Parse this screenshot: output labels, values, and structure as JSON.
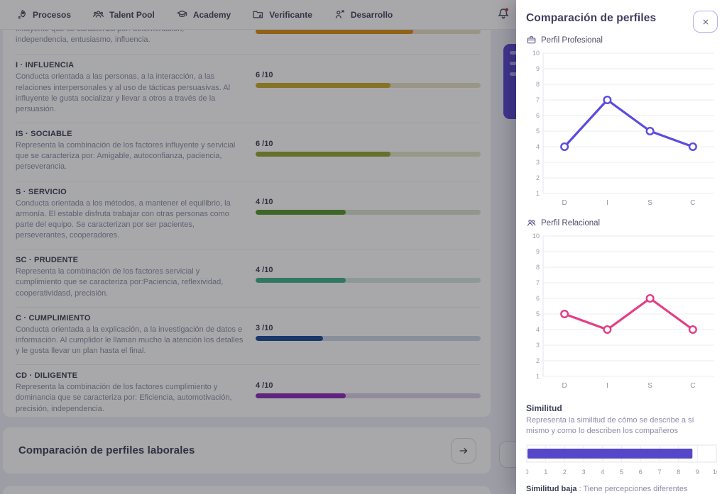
{
  "nav": {
    "items": [
      {
        "label": "Procesos",
        "icon": "rocket-icon"
      },
      {
        "label": "Talent Pool",
        "icon": "people-group-icon"
      },
      {
        "label": "Academy",
        "icon": "graduation-cap-icon"
      },
      {
        "label": "Verificante",
        "icon": "folder-user-icon"
      },
      {
        "label": "Desarrollo",
        "icon": "user-growth-icon"
      }
    ],
    "notifications": {
      "icon": "bell-icon",
      "has_unread": true
    }
  },
  "disc_report": {
    "partial_section": {
      "clipped_line": "influyente que se caracteriza por: determinación,",
      "visible_line": "independencia, entusiasmo, influencia.",
      "value": 7,
      "color": "#dd9118",
      "track": "#eadfc4"
    },
    "sections": [
      {
        "title": "I · INFLUENCIA",
        "description": "Conducta orientada a las personas, a la interacción, a las relaciones interpersonales y al uso de tácticas persuasivas. Al influyente le gusta socializar y llevar a otros a través de la persuasión.",
        "score_label": "6 /10",
        "value": 6,
        "color": "#c9ac2a",
        "track": "#e9e3c6"
      },
      {
        "title": "IS · SOCIABLE",
        "description": "Representa la combinación de los factores influyente y servicial que se caracteriza por: Amigable, autoconfianza, paciencia, perseverancia.",
        "score_label": "6 /10",
        "value": 6,
        "color": "#97a637",
        "track": "#e2e6c8"
      },
      {
        "title": "S · SERVICIO",
        "description": "Conducta orientada a los métodos, a mantener el equilibrio, la armonía. El estable disfruta trabajar con otras personas como parte del equipo. Se caracterizan por ser pacientes, perseverantes, cooperadores.",
        "score_label": "4 /10",
        "value": 4,
        "color": "#57972f",
        "track": "#d8e3cd"
      },
      {
        "title": "SC · PRUDENTE",
        "description": "Representa la combinación de los factores servicial y cumplimiento que se caracteriza por:Paciencia, reflexividad, cooperatividasd, precisión.",
        "score_label": "4 /10",
        "value": 4,
        "color": "#45b28f",
        "track": "#d3e8e0"
      },
      {
        "title": "C · CUMPLIMIENTO",
        "description": "Conducta orientada a la explicación, a la investigación de datos e información. Al cumplidor le llaman mucho la atención los detalles y le gusta llevar un plan hasta el final.",
        "score_label": "3 /10",
        "value": 3,
        "color": "#1d4f97",
        "track": "#cdd7e4"
      },
      {
        "title": "CD · DILIGENTE",
        "description": "Representa la combinación de los factores cumplimiento y dominancia que se caracteriza por: Eficiencia, automotivación, precisión, independencia.",
        "score_label": "4 /10",
        "value": 4,
        "color": "#8b2fb8",
        "track": "#ddd2e6"
      }
    ]
  },
  "footer_card": {
    "title": "Comparación de perfiles laborales",
    "action_icon": "arrow-right-icon"
  },
  "panel": {
    "title": "Comparación de perfiles",
    "close_icon": "close-icon",
    "similitud": {
      "title": "Similitud",
      "description": "Representa la similitud de cómo se describe a sí mismo y como lo describen los compañeros",
      "footnote_bold": "Similitud baja",
      "footnote_rest": " : Tiene percepciones diferentes"
    }
  },
  "chart_data": [
    {
      "type": "line",
      "title": "Perfil Profesional",
      "icon": "briefcase-icon",
      "categories": [
        "D",
        "I",
        "S",
        "C"
      ],
      "values": [
        4,
        7,
        5,
        4
      ],
      "color": "#5b4be0",
      "ylim": [
        1,
        10
      ],
      "grid": true,
      "marker": "open-circle"
    },
    {
      "type": "line",
      "title": "Perfil Relacional",
      "icon": "two-people-icon",
      "categories": [
        "D",
        "I",
        "S",
        "C"
      ],
      "values": [
        5,
        4,
        6,
        4
      ],
      "color": "#e53c86",
      "ylim": [
        1,
        10
      ],
      "grid": true,
      "marker": "open-circle"
    },
    {
      "type": "bar",
      "title": "Similitud",
      "orientation": "horizontal",
      "value": 8.7,
      "xlim": [
        0,
        10
      ],
      "tick_step": 1,
      "color": "#5646c8",
      "grid": true
    }
  ]
}
